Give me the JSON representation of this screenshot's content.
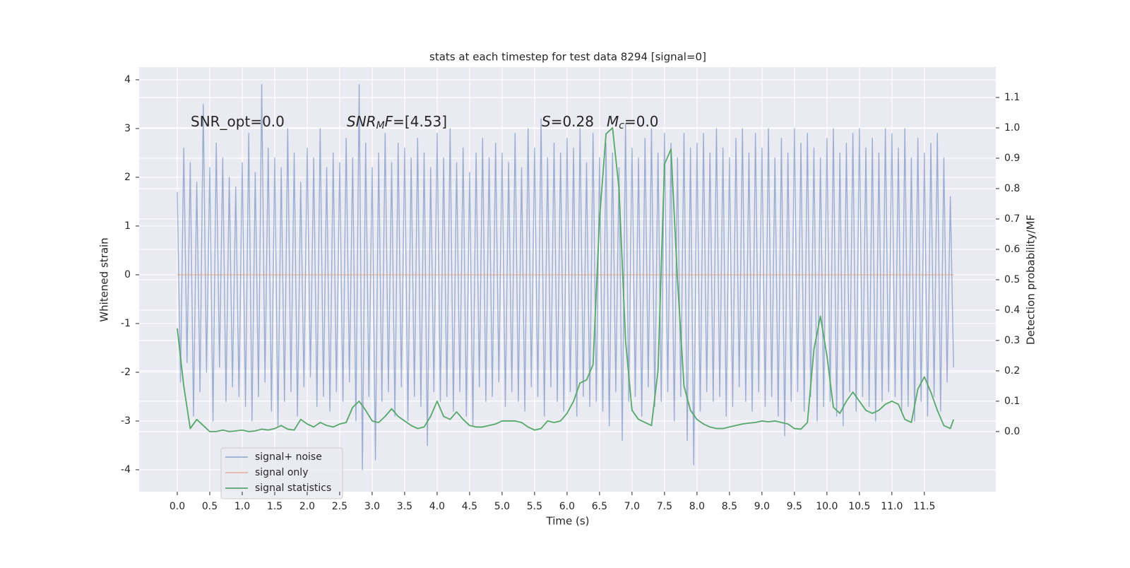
{
  "chart_data": {
    "type": "line",
    "title": "stats at each timestep for test data 8294 [signal=0]",
    "xlabel": "Time (s)",
    "ylabel": "Whitened strain",
    "y2label": "Detection probability/MF",
    "xlim": [
      -0.587,
      12.6
    ],
    "ylim": [
      -4.45,
      4.26
    ],
    "y2lim": [
      -0.198,
      1.2
    ],
    "xticks": [
      {
        "value": 0,
        "label": "0.0"
      },
      0.5,
      {
        "value": 1,
        "label": "1.0"
      },
      1.5,
      {
        "value": 2,
        "label": "2.0"
      },
      2.5,
      {
        "value": 3,
        "label": "3.0"
      },
      3.5,
      {
        "value": 4,
        "label": "4.0"
      },
      4.5,
      {
        "value": 5,
        "label": "5.0"
      },
      5.5,
      {
        "value": 6,
        "label": "6.0"
      },
      6.5,
      {
        "value": 7,
        "label": "7.0"
      },
      7.5,
      {
        "value": 8,
        "label": "8.0"
      },
      8.5,
      {
        "value": 9,
        "label": "9.0"
      },
      9.5,
      {
        "value": 10,
        "label": "10.0"
      },
      10.5,
      {
        "value": 11,
        "label": "11.0"
      },
      11.5
    ],
    "yticks": [
      -4,
      -3,
      -2,
      -1,
      0,
      1,
      2,
      3,
      4
    ],
    "y2ticks": [
      {
        "value": 0,
        "label": "0.0"
      },
      0.1,
      0.2,
      0.3,
      0.4,
      0.5,
      0.6,
      0.7,
      0.8,
      0.9,
      {
        "value": 1,
        "label": "1.0"
      },
      1.1
    ],
    "grid": true,
    "legend": "lower left",
    "annotations": [
      {
        "parts": [
          {
            "text": "SNR_opt=0.0",
            "style": "normal"
          }
        ]
      },
      {
        "parts": [
          {
            "text": "SNR",
            "style": "italic"
          },
          {
            "text": "M",
            "style": "sub"
          },
          {
            "text": "F",
            "style": "italic"
          },
          {
            "text": "=[4.53]",
            "style": "normal"
          }
        ]
      },
      {
        "parts": [
          {
            "text": "S",
            "style": "italic"
          },
          {
            "text": "=0.28",
            "style": "normal"
          }
        ]
      },
      {
        "parts": [
          {
            "text": "M",
            "style": "italic"
          },
          {
            "text": "c",
            "style": "sub"
          },
          {
            "text": "=0.0",
            "style": "normal"
          }
        ]
      }
    ],
    "series": [
      {
        "name": "signal+ noise",
        "color": "#4c72b0",
        "opacity": 0.5,
        "axis": "y",
        "x": [
          0,
          0.05,
          0.1,
          0.15,
          0.2,
          0.25,
          0.3,
          0.35,
          0.4,
          0.45,
          0.5,
          0.55,
          0.6,
          0.65,
          0.7,
          0.75,
          0.8,
          0.85,
          0.9,
          0.95,
          1,
          1.05,
          1.1,
          1.15,
          1.2,
          1.25,
          1.3,
          1.35,
          1.4,
          1.45,
          1.5,
          1.55,
          1.6,
          1.65,
          1.7,
          1.75,
          1.8,
          1.85,
          1.9,
          1.95,
          2,
          2.05,
          2.1,
          2.15,
          2.2,
          2.25,
          2.3,
          2.35,
          2.4,
          2.45,
          2.5,
          2.55,
          2.6,
          2.65,
          2.7,
          2.75,
          2.8,
          2.85,
          2.9,
          2.95,
          3,
          3.05,
          3.1,
          3.15,
          3.2,
          3.25,
          3.3,
          3.35,
          3.4,
          3.45,
          3.5,
          3.55,
          3.6,
          3.65,
          3.7,
          3.75,
          3.8,
          3.85,
          3.9,
          3.95,
          4,
          4.05,
          4.1,
          4.15,
          4.2,
          4.25,
          4.3,
          4.35,
          4.4,
          4.45,
          4.5,
          4.55,
          4.6,
          4.65,
          4.7,
          4.75,
          4.8,
          4.85,
          4.9,
          4.95,
          5,
          5.05,
          5.1,
          5.15,
          5.2,
          5.25,
          5.3,
          5.35,
          5.4,
          5.45,
          5.5,
          5.55,
          5.6,
          5.65,
          5.7,
          5.75,
          5.8,
          5.85,
          5.9,
          5.95,
          6,
          6.05,
          6.1,
          6.15,
          6.2,
          6.25,
          6.3,
          6.35,
          6.4,
          6.45,
          6.5,
          6.55,
          6.6,
          6.65,
          6.7,
          6.75,
          6.8,
          6.85,
          6.9,
          6.95,
          7,
          7.05,
          7.1,
          7.15,
          7.2,
          7.25,
          7.3,
          7.35,
          7.4,
          7.45,
          7.5,
          7.55,
          7.6,
          7.65,
          7.7,
          7.75,
          7.8,
          7.85,
          7.9,
          7.95,
          8,
          8.05,
          8.1,
          8.15,
          8.2,
          8.25,
          8.3,
          8.35,
          8.4,
          8.45,
          8.5,
          8.55,
          8.6,
          8.65,
          8.7,
          8.75,
          8.8,
          8.85,
          8.9,
          8.95,
          9,
          9.05,
          9.1,
          9.15,
          9.2,
          9.25,
          9.3,
          9.35,
          9.4,
          9.45,
          9.5,
          9.55,
          9.6,
          9.65,
          9.7,
          9.75,
          9.8,
          9.85,
          9.9,
          9.95,
          10,
          10.05,
          10.1,
          10.15,
          10.2,
          10.25,
          10.3,
          10.35,
          10.4,
          10.45,
          10.5,
          10.55,
          10.6,
          10.65,
          10.7,
          10.75,
          10.8,
          10.85,
          10.9,
          10.95,
          11,
          11.05,
          11.1,
          11.15,
          11.2,
          11.25,
          11.3,
          11.35,
          11.4,
          11.45,
          11.5,
          11.55,
          11.6,
          11.65,
          11.7,
          11.75,
          11.8,
          11.85,
          11.9,
          11.95
        ],
        "values": [
          1.7,
          -2.2,
          2.6,
          -1.8,
          2.3,
          -2.9,
          1.9,
          -2.4,
          3.5,
          -2.0,
          2.2,
          -3.0,
          2.7,
          -1.9,
          2.4,
          -2.6,
          2.0,
          -2.3,
          1.8,
          -2.5,
          2.3,
          -2.7,
          2.9,
          -3.0,
          2.1,
          -2.5,
          3.9,
          -2.2,
          2.6,
          -2.8,
          2.4,
          -3.1,
          2.2,
          -2.6,
          3.0,
          -2.4,
          2.5,
          -2.9,
          1.9,
          -2.3,
          2.6,
          -2.1,
          2.4,
          -2.7,
          3.0,
          -2.5,
          2.2,
          -2.8,
          2.5,
          -2.4,
          2.3,
          -2.6,
          2.8,
          -2.2,
          2.4,
          -3.0,
          3.9,
          -4.0,
          2.7,
          -2.5,
          2.2,
          -3.8,
          2.5,
          -2.6,
          2.9,
          -2.4,
          2.3,
          -2.9,
          2.7,
          -2.3,
          2.6,
          -3.0,
          2.4,
          -2.5,
          2.8,
          -2.7,
          2.5,
          -3.5,
          2.2,
          -2.4,
          2.9,
          -2.6,
          2.4,
          -2.5,
          3.0,
          -2.8,
          2.3,
          -2.4,
          2.6,
          -2.9,
          2.1,
          -3.1,
          2.5,
          -2.3,
          2.8,
          -2.6,
          2.4,
          -2.5,
          2.7,
          -2.2,
          2.5,
          -2.7,
          2.3,
          -2.4,
          2.9,
          -2.6,
          2.2,
          -2.8,
          3.0,
          -2.3,
          2.6,
          -2.5,
          3.2,
          -2.9,
          2.4,
          -2.3,
          2.7,
          -2.6,
          2.5,
          -2.8,
          2.8,
          -2.4,
          2.6,
          -2.9,
          3.0,
          -2.5,
          2.3,
          -2.7,
          2.9,
          -2.6,
          2.4,
          -2.8,
          2.7,
          -3.1,
          2.5,
          -2.4,
          2.2,
          -3.4,
          3.1,
          -2.6,
          2.6,
          -2.5,
          2.4,
          -2.9,
          2.8,
          -2.3,
          3.0,
          -2.7,
          2.5,
          -2.6,
          2.9,
          -2.4,
          2.7,
          -3.0,
          2.4,
          -2.5,
          2.9,
          -3.4,
          2.6,
          -3.9,
          2.7,
          -2.8,
          2.9,
          -2.4,
          2.5,
          -2.6,
          3.0,
          -2.5,
          2.6,
          -2.9,
          2.4,
          -2.7,
          2.8,
          -2.3,
          3.0,
          -2.6,
          2.5,
          -2.8,
          2.9,
          -2.4,
          2.6,
          -2.7,
          3.0,
          -2.5,
          2.4,
          -2.9,
          2.8,
          -3.3,
          2.5,
          -2.6,
          3.0,
          -2.4,
          2.7,
          -2.8,
          2.9,
          -2.5,
          2.6,
          -3.0,
          2.4,
          -2.7,
          2.8,
          -2.6,
          3.0,
          -2.9,
          2.5,
          -3.1,
          2.7,
          -2.4,
          2.9,
          -2.8,
          3.0,
          -2.5,
          2.6,
          -2.7,
          2.8,
          -3.0,
          2.5,
          -2.6,
          3.0,
          -2.4,
          2.9,
          -2.5,
          2.6,
          -2.8,
          3.0,
          -2.7,
          2.4,
          -3.0,
          2.8,
          -2.6,
          2.5,
          -2.9,
          2.7,
          -2.5,
          2.9,
          -2.8,
          2.4,
          -2.2,
          1.6,
          -1.9
        ]
      },
      {
        "name": "signal only",
        "color": "#dd8452",
        "opacity": 0.5,
        "axis": "y",
        "x": [
          0,
          11.95
        ],
        "values": [
          0,
          0
        ]
      },
      {
        "name": "signal statistics",
        "color": "#55a868",
        "opacity": 1,
        "axis": "y2",
        "x": [
          0,
          0.1,
          0.2,
          0.3,
          0.4,
          0.5,
          0.6,
          0.7,
          0.8,
          0.9,
          1,
          1.1,
          1.2,
          1.3,
          1.4,
          1.5,
          1.6,
          1.7,
          1.8,
          1.9,
          2,
          2.1,
          2.2,
          2.3,
          2.4,
          2.5,
          2.6,
          2.7,
          2.8,
          2.9,
          3,
          3.1,
          3.2,
          3.3,
          3.4,
          3.5,
          3.6,
          3.7,
          3.8,
          3.9,
          4,
          4.1,
          4.2,
          4.3,
          4.4,
          4.5,
          4.6,
          4.7,
          4.8,
          4.9,
          5,
          5.1,
          5.2,
          5.3,
          5.4,
          5.5,
          5.6,
          5.7,
          5.8,
          5.9,
          6,
          6.1,
          6.2,
          6.3,
          6.4,
          6.5,
          6.6,
          6.7,
          6.8,
          6.9,
          7,
          7.1,
          7.2,
          7.3,
          7.4,
          7.5,
          7.6,
          7.7,
          7.8,
          7.9,
          8,
          8.1,
          8.2,
          8.3,
          8.4,
          8.5,
          8.6,
          8.7,
          8.8,
          8.9,
          9,
          9.1,
          9.2,
          9.3,
          9.4,
          9.5,
          9.6,
          9.7,
          9.8,
          9.9,
          10,
          10.1,
          10.2,
          10.3,
          10.4,
          10.5,
          10.6,
          10.7,
          10.8,
          10.9,
          11,
          11.1,
          11.2,
          11.3,
          11.4,
          11.5,
          11.6,
          11.7,
          11.8,
          11.9,
          11.95
        ],
        "values": [
          0.34,
          0.15,
          0.01,
          0.04,
          0.02,
          0.0,
          0.0,
          0.005,
          0.0,
          0.002,
          0.005,
          0.0,
          0.002,
          0.008,
          0.005,
          0.01,
          0.02,
          0.008,
          0.005,
          0.04,
          0.025,
          0.015,
          0.03,
          0.02,
          0.015,
          0.025,
          0.03,
          0.08,
          0.1,
          0.07,
          0.035,
          0.03,
          0.05,
          0.075,
          0.05,
          0.035,
          0.02,
          0.01,
          0.015,
          0.05,
          0.1,
          0.05,
          0.04,
          0.065,
          0.04,
          0.02,
          0.015,
          0.015,
          0.02,
          0.025,
          0.035,
          0.035,
          0.035,
          0.03,
          0.015,
          0.005,
          0.01,
          0.035,
          0.03,
          0.035,
          0.06,
          0.1,
          0.16,
          0.17,
          0.22,
          0.7,
          0.98,
          1.0,
          0.8,
          0.3,
          0.07,
          0.04,
          0.03,
          0.02,
          0.2,
          0.88,
          0.93,
          0.5,
          0.15,
          0.07,
          0.04,
          0.025,
          0.015,
          0.01,
          0.01,
          0.015,
          0.02,
          0.025,
          0.028,
          0.03,
          0.035,
          0.032,
          0.035,
          0.03,
          0.025,
          0.01,
          0.008,
          0.03,
          0.27,
          0.38,
          0.25,
          0.08,
          0.06,
          0.1,
          0.13,
          0.1,
          0.07,
          0.06,
          0.07,
          0.09,
          0.1,
          0.09,
          0.04,
          0.03,
          0.14,
          0.18,
          0.13,
          0.07,
          0.02,
          0.01,
          0.04
        ]
      }
    ]
  }
}
